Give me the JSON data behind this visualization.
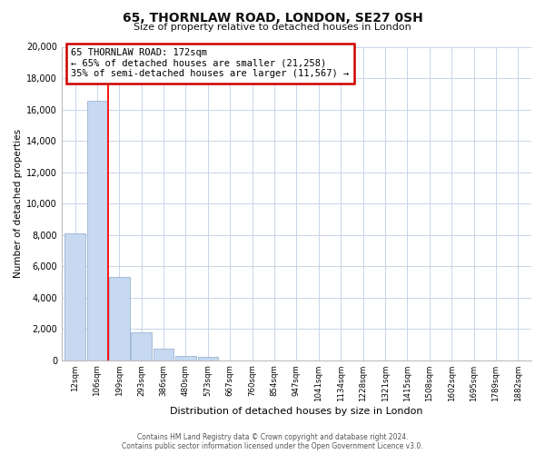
{
  "title": "65, THORNLAW ROAD, LONDON, SE27 0SH",
  "subtitle": "Size of property relative to detached houses in London",
  "xlabel": "Distribution of detached houses by size in London",
  "ylabel": "Number of detached properties",
  "bar_labels": [
    "12sqm",
    "106sqm",
    "199sqm",
    "293sqm",
    "386sqm",
    "480sqm",
    "573sqm",
    "667sqm",
    "760sqm",
    "854sqm",
    "947sqm",
    "1041sqm",
    "1134sqm",
    "1228sqm",
    "1321sqm",
    "1415sqm",
    "1508sqm",
    "1602sqm",
    "1695sqm",
    "1789sqm",
    "1882sqm"
  ],
  "bar_values": [
    8100,
    16550,
    5300,
    1800,
    750,
    280,
    230,
    0,
    0,
    0,
    0,
    0,
    0,
    0,
    0,
    0,
    0,
    0,
    0,
    0,
    0
  ],
  "bar_color": "#c6d9f1",
  "bar_edge_color": "#9ab4d4",
  "red_line_x": 1.5,
  "annotation_line1": "65 THORNLAW ROAD: 172sqm",
  "annotation_line2": "← 65% of detached houses are smaller (21,258)",
  "annotation_line3": "35% of semi-detached houses are larger (11,567) →",
  "ylim": [
    0,
    20000
  ],
  "yticks": [
    0,
    2000,
    4000,
    6000,
    8000,
    10000,
    12000,
    14000,
    16000,
    18000,
    20000
  ],
  "footer_line1": "Contains HM Land Registry data © Crown copyright and database right 2024.",
  "footer_line2": "Contains public sector information licensed under the Open Government Licence v3.0.",
  "background_color": "#ffffff",
  "grid_color": "#c8d4e8",
  "ann_box_facecolor": "#ffffff",
  "ann_box_edgecolor": "#cc0000"
}
